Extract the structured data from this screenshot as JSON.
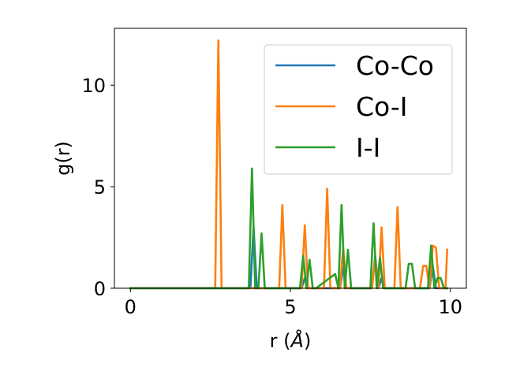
{
  "chart_data": {
    "type": "line",
    "title": "",
    "xlabel": "r (",
    "xlabel_symbol": "Å",
    "xlabel_suffix": ")",
    "ylabel": "g(r)",
    "xlim": [
      -0.5,
      10.5
    ],
    "ylim": [
      0,
      12.8
    ],
    "xticks": [
      0,
      5,
      10
    ],
    "yticks": [
      0,
      5,
      10
    ],
    "xtick_labels": [
      "0",
      "5",
      "10"
    ],
    "ytick_labels": [
      "0",
      "5",
      "10"
    ],
    "grid": false,
    "legend_position": "top-right",
    "series": [
      {
        "name": "Co-Co",
        "color": "#1f77b4",
        "x": [
          0,
          3.75,
          3.85,
          3.95,
          4.05,
          5.35,
          5.45,
          5.55,
          6.55,
          6.65,
          6.75,
          7.55,
          7.65,
          7.75,
          7.85,
          7.95,
          9.35,
          9.45,
          9.55,
          9.9
        ],
        "y": [
          0,
          0,
          3.0,
          0,
          0,
          0,
          0.5,
          0,
          0,
          1.0,
          0,
          0,
          1.6,
          0,
          0.5,
          0,
          0,
          1.1,
          0,
          0
        ]
      },
      {
        "name": "Co-I",
        "color": "#ff7f0e",
        "x": [
          0,
          2.65,
          2.75,
          2.85,
          4.65,
          4.75,
          4.85,
          5.35,
          5.45,
          5.55,
          6.05,
          6.15,
          6.25,
          6.55,
          6.65,
          6.75,
          7.55,
          7.65,
          7.75,
          7.85,
          7.95,
          8.25,
          8.35,
          8.45,
          9.05,
          9.15,
          9.25,
          9.35,
          9.45,
          9.55,
          9.65,
          9.75,
          9.85,
          9.9
        ],
        "y": [
          0,
          0,
          12.2,
          0,
          0,
          4.1,
          0,
          0,
          3.1,
          0,
          0,
          4.9,
          0,
          0,
          2.0,
          0,
          0,
          1.5,
          0,
          3.0,
          0,
          0,
          4.0,
          0,
          0,
          1.1,
          1.1,
          0,
          2.1,
          2.0,
          0,
          0,
          0,
          1.9
        ]
      },
      {
        "name": "I-I",
        "color": "#2ca02c",
        "x": [
          0,
          3.7,
          3.8,
          3.9,
          4.0,
          4.1,
          4.2,
          5.3,
          5.4,
          5.5,
          5.6,
          5.7,
          5.8,
          6.4,
          6.5,
          6.6,
          6.7,
          6.8,
          6.9,
          7.0,
          7.5,
          7.6,
          7.7,
          7.8,
          7.9,
          8.6,
          8.7,
          8.8,
          8.9,
          9.3,
          9.4,
          9.5,
          9.6,
          9.7,
          9.8,
          9.9
        ],
        "y": [
          0,
          0,
          5.9,
          0,
          0,
          2.7,
          0,
          0,
          1.6,
          0,
          1.4,
          0,
          0,
          0.7,
          0,
          4.1,
          0,
          1.9,
          0,
          0,
          0,
          3.2,
          0,
          1.5,
          0,
          0,
          1.2,
          1.2,
          0,
          0,
          2.1,
          0,
          0.5,
          0.5,
          0,
          0
        ]
      }
    ]
  }
}
